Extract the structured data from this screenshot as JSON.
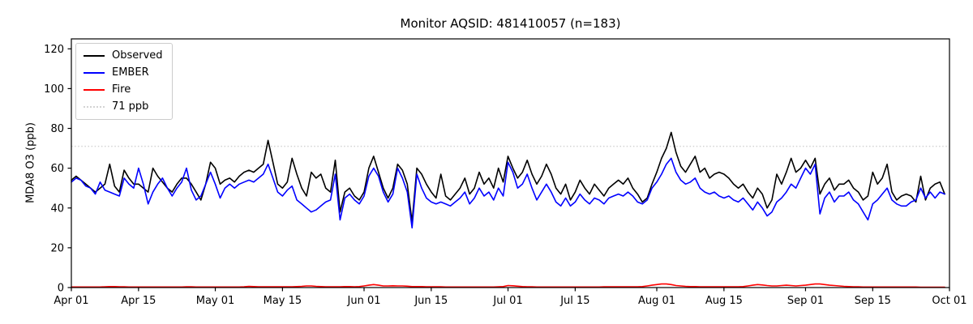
{
  "figure": {
    "title": "Monitor AQSID: 481410057 (n=183)",
    "ylabel": "MDA8 O3 (ppb)"
  },
  "chart_data": {
    "type": "line",
    "title": "Monitor AQSID: 481410057 (n=183)",
    "xlabel": "",
    "ylabel": "MDA8 O3 (ppb)",
    "xlim": [
      0,
      183
    ],
    "ylim": [
      0,
      125
    ],
    "grid": false,
    "legend_position": "upper-left",
    "x_start": "Apr 01",
    "x_end": "Oct 01",
    "y_ticks": [
      0,
      20,
      40,
      60,
      80,
      100,
      120
    ],
    "x_ticks": [
      {
        "label": "Apr 01",
        "day": 0
      },
      {
        "label": "Apr 15",
        "day": 14
      },
      {
        "label": "May 01",
        "day": 30
      },
      {
        "label": "May 15",
        "day": 44
      },
      {
        "label": "Jun 01",
        "day": 61
      },
      {
        "label": "Jun 15",
        "day": 75
      },
      {
        "label": "Jul 01",
        "day": 91
      },
      {
        "label": "Jul 15",
        "day": 105
      },
      {
        "label": "Aug 01",
        "day": 122
      },
      {
        "label": "Aug 15",
        "day": 136
      },
      {
        "label": "Sep 01",
        "day": 153
      },
      {
        "label": "Sep 15",
        "day": 167
      },
      {
        "label": "Oct 01",
        "day": 183
      }
    ],
    "threshold": {
      "value": 71,
      "label": "71 ppb",
      "color": "#d3d3d3",
      "style": "dotted"
    },
    "colors": {
      "observed": "#000000",
      "ember": "#0000ff",
      "fire": "#ff0000",
      "threshold": "#d3d3d3"
    },
    "series": [
      {
        "name": "Observed",
        "color": "#000000",
        "style": "solid",
        "values": [
          54,
          56,
          54,
          52,
          50,
          48,
          50,
          52,
          62,
          51,
          48,
          59,
          55,
          52,
          52,
          50,
          48,
          60,
          56,
          53,
          50,
          48,
          52,
          55,
          55,
          52,
          48,
          44,
          52,
          63,
          60,
          52,
          54,
          55,
          53,
          56,
          58,
          59,
          58,
          60,
          62,
          74,
          63,
          52,
          50,
          53,
          65,
          57,
          50,
          46,
          58,
          55,
          57,
          50,
          48,
          64,
          38,
          48,
          50,
          46,
          44,
          48,
          60,
          66,
          58,
          50,
          45,
          50,
          62,
          59,
          52,
          33,
          60,
          57,
          52,
          48,
          45,
          57,
          46,
          44,
          47,
          50,
          55,
          47,
          50,
          58,
          52,
          55,
          50,
          60,
          53,
          66,
          60,
          55,
          58,
          64,
          57,
          52,
          56,
          62,
          57,
          50,
          47,
          52,
          44,
          48,
          54,
          50,
          47,
          52,
          49,
          46,
          50,
          52,
          54,
          52,
          55,
          50,
          47,
          43,
          45,
          52,
          58,
          65,
          70,
          78,
          68,
          61,
          58,
          62,
          66,
          58,
          60,
          55,
          57,
          58,
          57,
          55,
          52,
          50,
          52,
          48,
          45,
          50,
          47,
          40,
          44,
          57,
          52,
          58,
          65,
          58,
          60,
          64,
          60,
          65,
          47,
          52,
          55,
          49,
          52,
          52,
          54,
          50,
          48,
          44,
          46,
          58,
          52,
          55,
          62,
          48,
          44,
          46,
          47,
          46,
          43,
          56,
          44,
          50,
          52,
          53,
          47
        ]
      },
      {
        "name": "EMBER",
        "color": "#0000ff",
        "style": "solid",
        "values": [
          53,
          55,
          54,
          51,
          50,
          47,
          53,
          49,
          48,
          47,
          46,
          55,
          52,
          50,
          60,
          52,
          42,
          48,
          52,
          55,
          50,
          46,
          50,
          53,
          60,
          49,
          44,
          46,
          52,
          58,
          52,
          45,
          50,
          52,
          50,
          52,
          53,
          54,
          53,
          55,
          57,
          62,
          55,
          48,
          46,
          49,
          51,
          44,
          42,
          40,
          38,
          39,
          41,
          43,
          44,
          57,
          34,
          45,
          47,
          44,
          42,
          46,
          56,
          60,
          56,
          48,
          43,
          47,
          60,
          55,
          48,
          30,
          57,
          50,
          45,
          43,
          42,
          43,
          42,
          41,
          43,
          45,
          48,
          42,
          45,
          50,
          46,
          48,
          44,
          50,
          46,
          63,
          58,
          50,
          52,
          57,
          50,
          44,
          48,
          52,
          48,
          43,
          41,
          45,
          41,
          43,
          47,
          44,
          42,
          45,
          44,
          42,
          45,
          46,
          47,
          46,
          48,
          46,
          43,
          42,
          44,
          50,
          53,
          57,
          62,
          65,
          58,
          54,
          52,
          53,
          55,
          50,
          48,
          47,
          48,
          46,
          45,
          46,
          44,
          43,
          45,
          42,
          39,
          43,
          40,
          36,
          38,
          43,
          45,
          48,
          52,
          50,
          55,
          60,
          57,
          62,
          37,
          45,
          48,
          43,
          46,
          46,
          48,
          44,
          42,
          38,
          34,
          42,
          44,
          47,
          50,
          44,
          42,
          41,
          41,
          43,
          44,
          50,
          45,
          48,
          45,
          48,
          47
        ]
      },
      {
        "name": "Fire",
        "color": "#ff0000",
        "style": "solid",
        "values": [
          0.3,
          0.3,
          0.3,
          0.3,
          0.3,
          0.3,
          0.3,
          0.4,
          0.5,
          0.5,
          0.4,
          0.4,
          0.3,
          0.3,
          0.3,
          0.3,
          0.3,
          0.3,
          0.3,
          0.3,
          0.3,
          0.3,
          0.3,
          0.3,
          0.4,
          0.4,
          0.3,
          0.3,
          0.3,
          0.3,
          0.3,
          0.3,
          0.3,
          0.3,
          0.3,
          0.3,
          0.4,
          0.6,
          0.5,
          0.4,
          0.4,
          0.4,
          0.4,
          0.4,
          0.4,
          0.4,
          0.4,
          0.5,
          0.6,
          0.8,
          0.8,
          0.6,
          0.5,
          0.4,
          0.4,
          0.4,
          0.4,
          0.5,
          0.5,
          0.4,
          0.5,
          0.8,
          1.2,
          1.5,
          1.2,
          0.8,
          0.8,
          0.9,
          0.8,
          0.8,
          0.7,
          0.5,
          0.5,
          0.5,
          0.4,
          0.4,
          0.4,
          0.4,
          0.3,
          0.3,
          0.3,
          0.3,
          0.3,
          0.3,
          0.3,
          0.3,
          0.3,
          0.3,
          0.3,
          0.4,
          0.5,
          1.0,
          0.9,
          0.7,
          0.5,
          0.4,
          0.4,
          0.3,
          0.3,
          0.3,
          0.3,
          0.3,
          0.3,
          0.3,
          0.3,
          0.3,
          0.3,
          0.3,
          0.3,
          0.3,
          0.3,
          0.4,
          0.4,
          0.4,
          0.4,
          0.4,
          0.4,
          0.4,
          0.4,
          0.5,
          0.8,
          1.2,
          1.5,
          1.8,
          1.8,
          1.5,
          1.0,
          0.8,
          0.6,
          0.5,
          0.5,
          0.4,
          0.4,
          0.4,
          0.4,
          0.4,
          0.4,
          0.4,
          0.4,
          0.4,
          0.5,
          0.8,
          1.2,
          1.5,
          1.3,
          1.0,
          0.8,
          0.8,
          1.0,
          1.2,
          1.0,
          0.8,
          1.0,
          1.2,
          1.5,
          1.8,
          1.8,
          1.5,
          1.2,
          1.0,
          0.8,
          0.6,
          0.5,
          0.4,
          0.4,
          0.3,
          0.3,
          0.3,
          0.3,
          0.3,
          0.3,
          0.3,
          0.3,
          0.3,
          0.3,
          0.3,
          0.3,
          0.2,
          0.2,
          0.2,
          0.2,
          0.2,
          0.2
        ]
      }
    ]
  }
}
